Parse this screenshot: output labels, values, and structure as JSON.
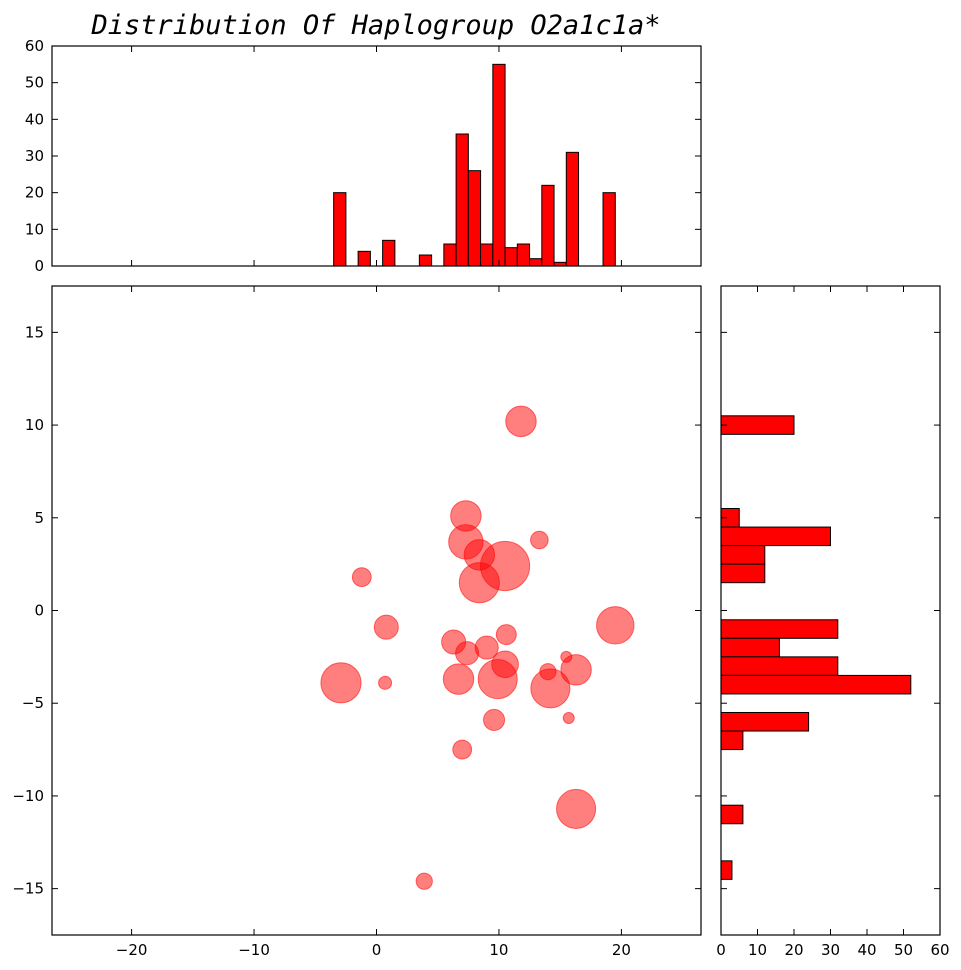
{
  "chart_data": [
    {
      "id": "top-histogram",
      "type": "bar",
      "orientation": "vertical",
      "title": "Distribution Of Haplogroup O2a1c1a*",
      "xlim": [
        -26.5,
        26.5
      ],
      "ylim": [
        0,
        60
      ],
      "yticks": [
        0,
        10,
        20,
        30,
        40,
        50,
        60
      ],
      "bar_width": 1.0,
      "bars": [
        {
          "x": -3.0,
          "value": 20
        },
        {
          "x": -1.0,
          "value": 4
        },
        {
          "x": 1.0,
          "value": 7
        },
        {
          "x": 4.0,
          "value": 3
        },
        {
          "x": 6.0,
          "value": 6
        },
        {
          "x": 7.0,
          "value": 36
        },
        {
          "x": 8.0,
          "value": 26
        },
        {
          "x": 9.0,
          "value": 6
        },
        {
          "x": 10.0,
          "value": 55
        },
        {
          "x": 11.0,
          "value": 5
        },
        {
          "x": 12.0,
          "value": 6
        },
        {
          "x": 13.0,
          "value": 2
        },
        {
          "x": 14.0,
          "value": 22
        },
        {
          "x": 15.0,
          "value": 1
        },
        {
          "x": 16.0,
          "value": 31
        },
        {
          "x": 19.0,
          "value": 20
        }
      ],
      "color": "#ff0000"
    },
    {
      "id": "scatter",
      "type": "scatter",
      "xlim": [
        -26.5,
        26.5
      ],
      "ylim": [
        -17.5,
        17.5
      ],
      "xticks": [
        -20,
        -10,
        0,
        10,
        20
      ],
      "yticks": [
        -15,
        -10,
        -5,
        0,
        5,
        10,
        15
      ],
      "color": "#ff0000",
      "alpha": 0.5,
      "points": [
        {
          "x": 11.8,
          "y": 10.2,
          "size": 20
        },
        {
          "x": 7.3,
          "y": 5.1,
          "size": 20
        },
        {
          "x": 13.3,
          "y": 3.8,
          "size": 6
        },
        {
          "x": 7.3,
          "y": 3.7,
          "size": 26
        },
        {
          "x": 8.4,
          "y": 3.0,
          "size": 20
        },
        {
          "x": 10.5,
          "y": 2.4,
          "size": 55
        },
        {
          "x": -1.2,
          "y": 1.8,
          "size": 7
        },
        {
          "x": 8.4,
          "y": 1.5,
          "size": 36
        },
        {
          "x": 0.8,
          "y": -0.9,
          "size": 12
        },
        {
          "x": 19.5,
          "y": -0.8,
          "size": 31
        },
        {
          "x": 10.6,
          "y": -1.3,
          "size": 8
        },
        {
          "x": 6.3,
          "y": -1.7,
          "size": 12
        },
        {
          "x": 9.0,
          "y": -2.0,
          "size": 11
        },
        {
          "x": 7.4,
          "y": -2.3,
          "size": 11
        },
        {
          "x": 15.5,
          "y": -2.5,
          "size": 2
        },
        {
          "x": 10.5,
          "y": -2.9,
          "size": 15
        },
        {
          "x": 16.3,
          "y": -3.2,
          "size": 20
        },
        {
          "x": 14.0,
          "y": -3.3,
          "size": 5
        },
        {
          "x": 6.7,
          "y": -3.7,
          "size": 20
        },
        {
          "x": 9.9,
          "y": -3.7,
          "size": 34
        },
        {
          "x": -2.9,
          "y": -3.9,
          "size": 36
        },
        {
          "x": 0.7,
          "y": -3.9,
          "size": 3
        },
        {
          "x": 14.2,
          "y": -4.2,
          "size": 34
        },
        {
          "x": 15.7,
          "y": -5.8,
          "size": 2
        },
        {
          "x": 9.6,
          "y": -5.9,
          "size": 9
        },
        {
          "x": 7.0,
          "y": -7.5,
          "size": 7
        },
        {
          "x": 16.3,
          "y": -10.7,
          "size": 34
        },
        {
          "x": 3.9,
          "y": -14.6,
          "size": 5
        }
      ]
    },
    {
      "id": "right-histogram",
      "type": "bar",
      "orientation": "horizontal",
      "xlim": [
        0,
        60
      ],
      "xticks": [
        0,
        10,
        20,
        30,
        40,
        50,
        60
      ],
      "ylim": [
        -17.5,
        17.5
      ],
      "bar_height": 1.0,
      "bars": [
        {
          "y": 10.0,
          "value": 20
        },
        {
          "y": 5.0,
          "value": 5
        },
        {
          "y": 4.0,
          "value": 30
        },
        {
          "y": 3.0,
          "value": 12
        },
        {
          "y": 2.0,
          "value": 12
        },
        {
          "y": -1.0,
          "value": 32
        },
        {
          "y": -2.0,
          "value": 16
        },
        {
          "y": -3.0,
          "value": 32
        },
        {
          "y": -4.0,
          "value": 52
        },
        {
          "y": -6.0,
          "value": 24
        },
        {
          "y": -7.0,
          "value": 6
        },
        {
          "y": -11.0,
          "value": 6
        },
        {
          "y": -14.0,
          "value": 3
        }
      ],
      "color": "#ff0000"
    }
  ]
}
